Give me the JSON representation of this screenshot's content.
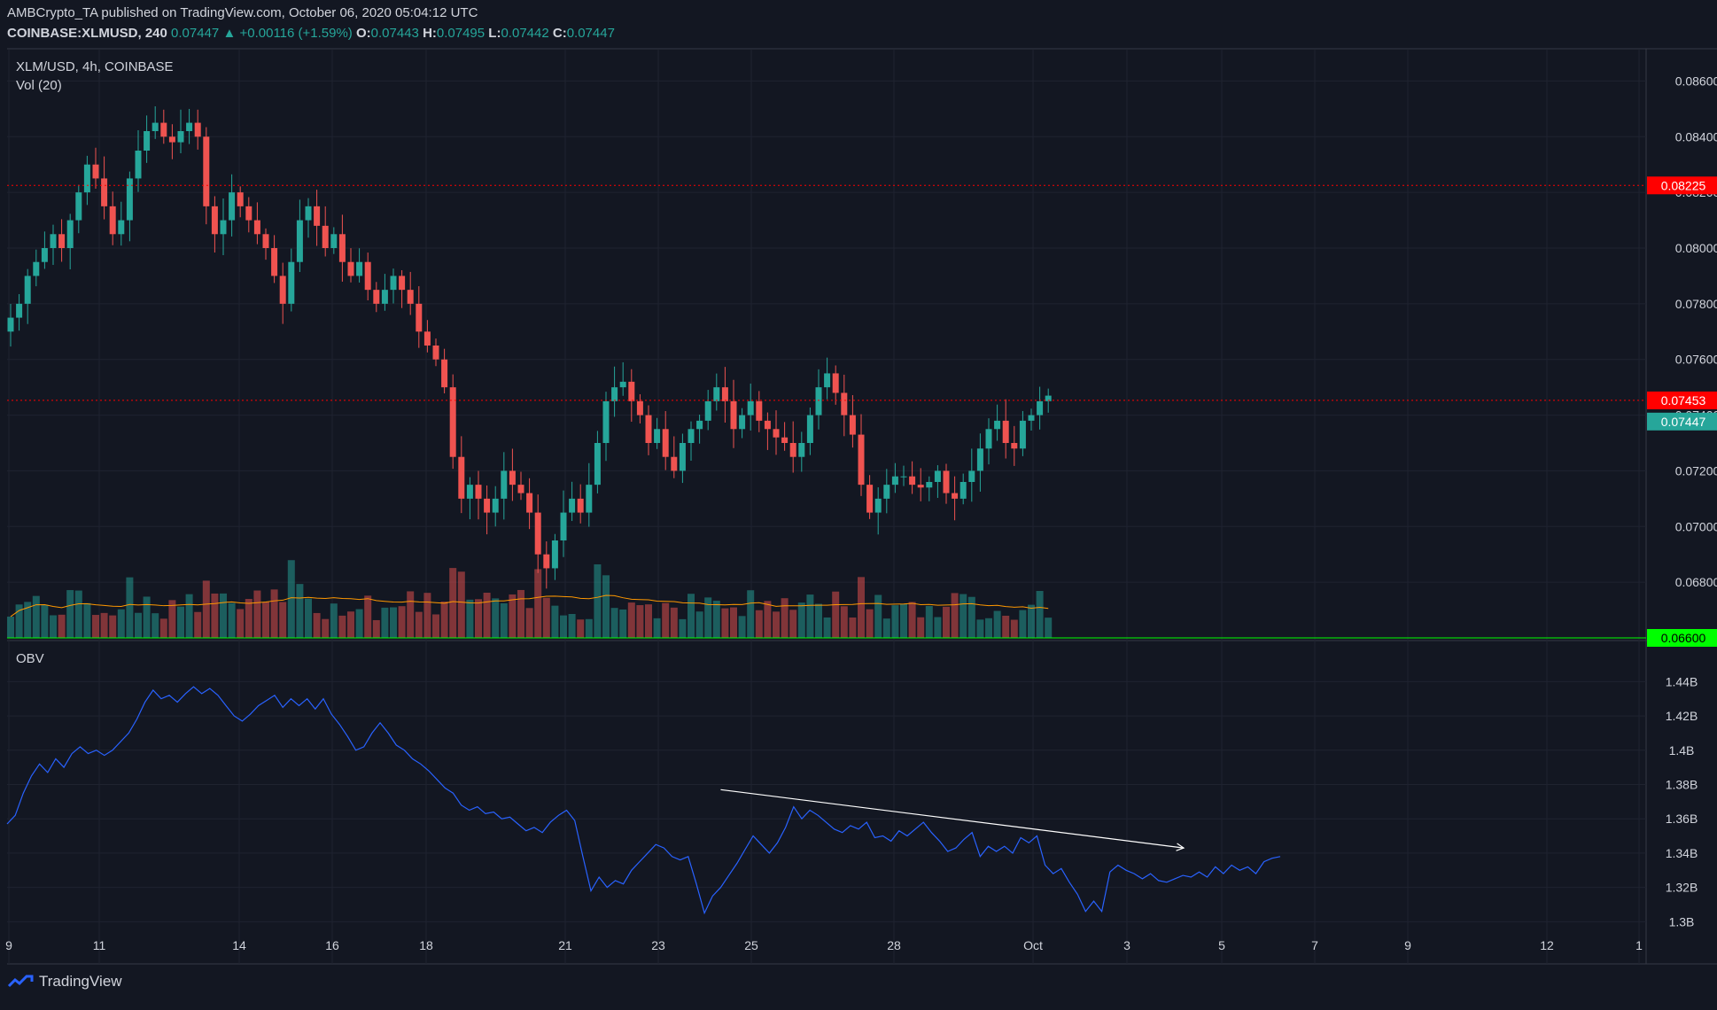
{
  "header": {
    "published_by": "AMBCrypto_TA published on TradingView.com, October 06, 2020 05:04:12 UTC",
    "symbol": "COINBASE:XLMUSD, 240",
    "last": "0.07447",
    "change": "+0.00116 (+1.59%)",
    "o_label": "O:",
    "o": "0.07443",
    "h_label": "H:",
    "h": "0.07495",
    "l_label": "L:",
    "l": "0.07442",
    "c_label": "C:",
    "c": "0.07447"
  },
  "main_pane": {
    "title": "XLM/USD, 4h, COINBASE",
    "vol_label": "Vol (20)"
  },
  "obv_pane": {
    "title": "OBV"
  },
  "footer": {
    "brand": "TradingView"
  },
  "colors": {
    "background": "#131722",
    "up": "#26a69a",
    "down": "#ef5350",
    "resistance": "#ff0000",
    "support": "#00ff00",
    "obv_line": "#2962ff",
    "vol_ma": "#ff9800",
    "trendline": "#ffffff"
  },
  "chart_data": [
    {
      "type": "candlestick",
      "title": "XLM/USD, 4h, COINBASE",
      "ylim": [
        0.066,
        0.087
      ],
      "y_ticks": [
        "0.08600",
        "0.08400",
        "0.08200",
        "0.08000",
        "0.07800",
        "0.07600",
        "0.07400",
        "0.07200",
        "0.07000",
        "0.06800"
      ],
      "x_ticks": [
        "9",
        "11",
        "14",
        "16",
        "18",
        "21",
        "23",
        "25",
        "28",
        "Oct",
        "3",
        "5",
        "7",
        "9",
        "12",
        "1"
      ],
      "horizontal_levels": [
        {
          "value": 0.08225,
          "label": "0.08225",
          "color": "#ff0000",
          "style": "dotted"
        },
        {
          "value": 0.07453,
          "label": "0.07453",
          "color": "#ff0000",
          "style": "dotted"
        },
        {
          "value": 0.066,
          "label": "0.06600",
          "color": "#00ff00",
          "style": "solid"
        }
      ],
      "last_price_label": "0.07447",
      "closes_approx": [
        0.0775,
        0.078,
        0.079,
        0.0795,
        0.08,
        0.0805,
        0.08,
        0.081,
        0.082,
        0.083,
        0.0825,
        0.0815,
        0.0805,
        0.081,
        0.0825,
        0.0835,
        0.0842,
        0.0845,
        0.084,
        0.0838,
        0.0842,
        0.0845,
        0.084,
        0.0815,
        0.0805,
        0.081,
        0.082,
        0.0815,
        0.081,
        0.0805,
        0.08,
        0.079,
        0.078,
        0.0795,
        0.081,
        0.0815,
        0.0808,
        0.08,
        0.0805,
        0.0795,
        0.079,
        0.0795,
        0.0785,
        0.078,
        0.0785,
        0.079,
        0.0785,
        0.078,
        0.077,
        0.0765,
        0.076,
        0.075,
        0.0725,
        0.071,
        0.0715,
        0.071,
        0.0705,
        0.071,
        0.072,
        0.0715,
        0.0712,
        0.0705,
        0.069,
        0.0685,
        0.0695,
        0.0705,
        0.071,
        0.0705,
        0.0715,
        0.073,
        0.0745,
        0.075,
        0.0752,
        0.0745,
        0.074,
        0.073,
        0.0735,
        0.0725,
        0.072,
        0.073,
        0.0735,
        0.0738,
        0.0745,
        0.075,
        0.0745,
        0.0735,
        0.074,
        0.0745,
        0.0738,
        0.0735,
        0.0732,
        0.073,
        0.0725,
        0.073,
        0.074,
        0.075,
        0.0755,
        0.0748,
        0.074,
        0.0733,
        0.0715,
        0.0705,
        0.071,
        0.0715,
        0.0718,
        0.0718,
        0.0715,
        0.0714,
        0.0716,
        0.072,
        0.0712,
        0.071,
        0.0716,
        0.072,
        0.0728,
        0.0735,
        0.0738,
        0.073,
        0.0728,
        0.0738,
        0.074,
        0.0745,
        0.0747
      ],
      "volume_note": "Volume bars with 20-period moving average"
    },
    {
      "type": "line",
      "title": "OBV",
      "ylim": [
        1.295,
        1.45
      ],
      "y_ticks": [
        "1.44B",
        "1.42B",
        "1.4B",
        "1.38B",
        "1.36B",
        "1.34B",
        "1.32B",
        "1.3B"
      ],
      "obv_values_billions": [
        1.357,
        1.362,
        1.375,
        1.385,
        1.392,
        1.387,
        1.395,
        1.39,
        1.398,
        1.402,
        1.398,
        1.4,
        1.397,
        1.4,
        1.405,
        1.41,
        1.418,
        1.428,
        1.435,
        1.43,
        1.432,
        1.428,
        1.433,
        1.437,
        1.433,
        1.436,
        1.432,
        1.426,
        1.42,
        1.417,
        1.421,
        1.426,
        1.429,
        1.432,
        1.425,
        1.43,
        1.426,
        1.43,
        1.424,
        1.43,
        1.421,
        1.415,
        1.408,
        1.4,
        1.402,
        1.41,
        1.416,
        1.41,
        1.403,
        1.4,
        1.395,
        1.392,
        1.388,
        1.383,
        1.378,
        1.375,
        1.368,
        1.365,
        1.367,
        1.363,
        1.364,
        1.36,
        1.361,
        1.357,
        1.353,
        1.355,
        1.352,
        1.358,
        1.362,
        1.365,
        1.359,
        1.338,
        1.318,
        1.326,
        1.32,
        1.324,
        1.322,
        1.33,
        1.335,
        1.34,
        1.345,
        1.343,
        1.338,
        1.336,
        1.338,
        1.322,
        1.305,
        1.315,
        1.32,
        1.327,
        1.334,
        1.342,
        1.35,
        1.345,
        1.34,
        1.346,
        1.355,
        1.367,
        1.36,
        1.365,
        1.362,
        1.358,
        1.354,
        1.352,
        1.356,
        1.354,
        1.358,
        1.349,
        1.35,
        1.347,
        1.353,
        1.35,
        1.354,
        1.358,
        1.352,
        1.347,
        1.341,
        1.343,
        1.348,
        1.352,
        1.338,
        1.344,
        1.341,
        1.344,
        1.34,
        1.349,
        1.346,
        1.35,
        1.333,
        1.328,
        1.331,
        1.323,
        1.316,
        1.306,
        1.312,
        1.306,
        1.329,
        1.333,
        1.33,
        1.328,
        1.325,
        1.328,
        1.324,
        1.323,
        1.325,
        1.327,
        1.326,
        1.329,
        1.326,
        1.332,
        1.328,
        1.333,
        1.33,
        1.332,
        1.328,
        1.335,
        1.337,
        1.338
      ],
      "trendline": {
        "from": {
          "index": 88,
          "value": 1.377
        },
        "to": {
          "index": 144,
          "value": 1.343
        },
        "color": "#ffffff"
      }
    }
  ]
}
